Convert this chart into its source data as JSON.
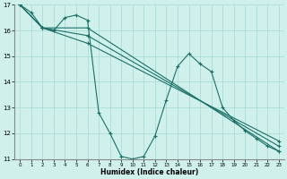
{
  "xlabel": "Humidex (Indice chaleur)",
  "bg_color": "#cff0eb",
  "grid_color": "#aaddd5",
  "line_color": "#1a7068",
  "series": [
    {
      "x": [
        0,
        1,
        2,
        3,
        4,
        5,
        6,
        7,
        8,
        9,
        10,
        11,
        12,
        13,
        14,
        15,
        16,
        17,
        18,
        19,
        20,
        21,
        22,
        23
      ],
      "y": [
        17.0,
        16.7,
        16.1,
        16.0,
        16.5,
        16.6,
        16.4,
        12.8,
        12.0,
        11.1,
        11.0,
        11.1,
        11.9,
        13.3,
        14.6,
        15.1,
        14.7,
        14.4,
        13.0,
        12.5,
        12.1,
        11.8,
        11.5,
        11.3
      ]
    },
    {
      "x": [
        0,
        2,
        6,
        23
      ],
      "y": [
        17.0,
        16.1,
        16.1,
        11.3
      ]
    },
    {
      "x": [
        0,
        2,
        6,
        23
      ],
      "y": [
        17.0,
        16.1,
        15.8,
        11.5
      ]
    },
    {
      "x": [
        0,
        2,
        6,
        23
      ],
      "y": [
        17.0,
        16.1,
        15.5,
        11.7
      ]
    }
  ],
  "ylim": [
    11,
    17
  ],
  "xlim": [
    -0.5,
    23.5
  ],
  "yticks": [
    11,
    12,
    13,
    14,
    15,
    16,
    17
  ],
  "xticks": [
    0,
    1,
    2,
    3,
    4,
    5,
    6,
    7,
    8,
    9,
    10,
    11,
    12,
    13,
    14,
    15,
    16,
    17,
    18,
    19,
    20,
    21,
    22,
    23
  ],
  "marker": "+",
  "markersize": 3,
  "linewidth": 0.8
}
